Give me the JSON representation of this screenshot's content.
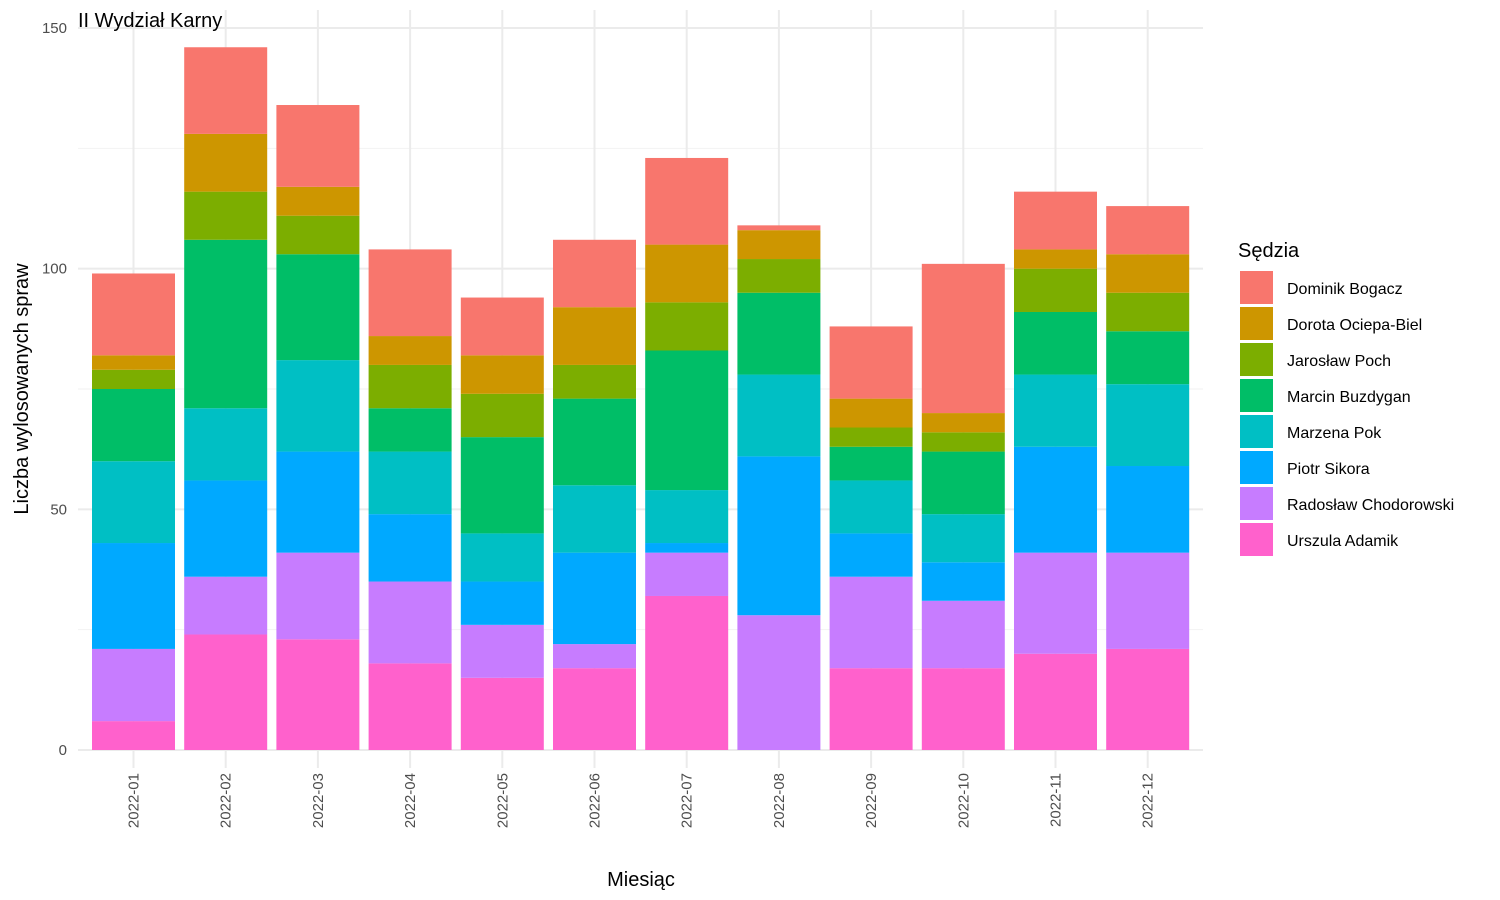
{
  "chart_data": {
    "type": "bar",
    "stacked": true,
    "title": "II Wydział Karny",
    "xlabel": "Miesiąc",
    "ylabel": "Liczba wylosowanych spraw",
    "ylim": [
      0,
      150
    ],
    "yticks": [
      0,
      50,
      100,
      150
    ],
    "grid": true,
    "legend_title": "Sędzia",
    "legend_position": "right",
    "categories": [
      "2022-01",
      "2022-02",
      "2022-03",
      "2022-04",
      "2022-05",
      "2022-06",
      "2022-07",
      "2022-08",
      "2022-09",
      "2022-10",
      "2022-11",
      "2022-12"
    ],
    "series": [
      {
        "name": "Dominik Bogacz",
        "color": "#F8766D",
        "values": [
          17,
          18,
          17,
          18,
          12,
          14,
          18,
          1,
          15,
          31,
          12,
          10
        ]
      },
      {
        "name": "Dorota Ociepa-Biel",
        "color": "#CD9600",
        "values": [
          3,
          12,
          6,
          6,
          8,
          12,
          12,
          6,
          6,
          4,
          4,
          8
        ]
      },
      {
        "name": "Jarosław Poch",
        "color": "#7CAE00",
        "values": [
          4,
          10,
          8,
          9,
          9,
          7,
          10,
          7,
          4,
          4,
          9,
          8
        ]
      },
      {
        "name": "Marcin Buzdygan",
        "color": "#00BE67",
        "values": [
          15,
          35,
          22,
          9,
          20,
          18,
          29,
          17,
          7,
          13,
          13,
          11
        ]
      },
      {
        "name": "Marzena Pok",
        "color": "#00BFC4",
        "values": [
          17,
          15,
          19,
          13,
          10,
          14,
          11,
          17,
          11,
          10,
          15,
          17
        ]
      },
      {
        "name": "Piotr Sikora",
        "color": "#00A9FF",
        "values": [
          22,
          20,
          21,
          14,
          9,
          19,
          2,
          33,
          9,
          8,
          22,
          18
        ]
      },
      {
        "name": "Radosław Chodorowski",
        "color": "#C77CFF",
        "values": [
          15,
          12,
          18,
          17,
          11,
          5,
          9,
          28,
          19,
          14,
          21,
          20
        ]
      },
      {
        "name": "Urszula Adamik",
        "color": "#FF61CC",
        "values": [
          6,
          24,
          23,
          18,
          15,
          17,
          32,
          0,
          17,
          17,
          20,
          21
        ]
      }
    ]
  }
}
